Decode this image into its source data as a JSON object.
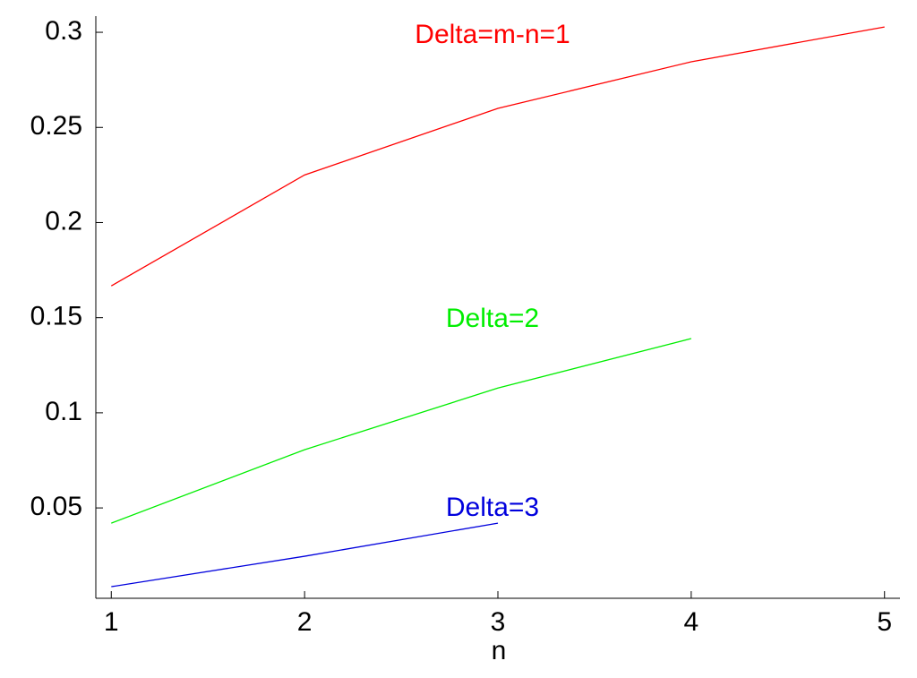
{
  "chart_data": {
    "type": "line",
    "x_label": "n",
    "x": [
      1,
      2,
      3,
      4,
      5
    ],
    "series": [
      {
        "name": "Delta=m-n=1",
        "color": "#ff0000",
        "values": [
          0.1667,
          0.225,
          0.26,
          0.2845,
          0.3028
        ]
      },
      {
        "name": "Delta=2",
        "color": "#00ee00",
        "values": [
          0.042,
          0.0806,
          0.113,
          0.139,
          null
        ]
      },
      {
        "name": "Delta=3",
        "color": "#0000dd",
        "values": [
          0.0086,
          0.0246,
          0.042,
          null,
          null
        ]
      }
    ],
    "xlim": [
      0.92,
      5.08
    ],
    "xticks": [
      1,
      2,
      3,
      4,
      5
    ],
    "ylim": [
      0.0025,
      0.3085
    ],
    "yticks": [
      0.05,
      0.1,
      0.15,
      0.2,
      0.25,
      0.3
    ],
    "grid": false
  }
}
